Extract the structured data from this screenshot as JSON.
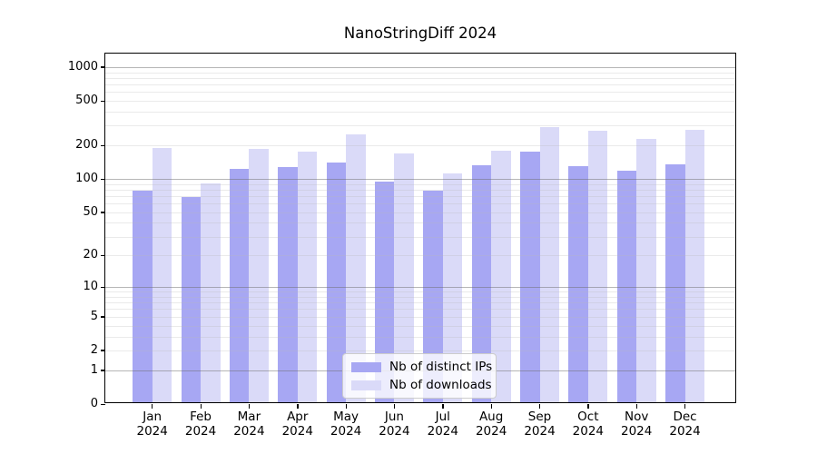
{
  "chart_data": {
    "type": "bar",
    "title": "NanoStringDiff 2024",
    "categories": [
      "Jan",
      "Feb",
      "Mar",
      "Apr",
      "May",
      "Jun",
      "Jul",
      "Aug",
      "Sep",
      "Oct",
      "Nov",
      "Dec"
    ],
    "category_year": "2024",
    "series": [
      {
        "name": "Nb of distinct IPs",
        "color": "#a7a7f3",
        "values": [
          75,
          66,
          119,
          123,
          134,
          92,
          75,
          129,
          170,
          126,
          115,
          131
        ]
      },
      {
        "name": "Nb of downloads",
        "color": "#dadaf8",
        "values": [
          182,
          87,
          178,
          169,
          240,
          162,
          107,
          172,
          280,
          259,
          220,
          264
        ]
      }
    ],
    "y_axis": {
      "scale": "log10(1+y)",
      "ticks": [
        0,
        1,
        2,
        5,
        10,
        20,
        50,
        100,
        200,
        500,
        1000
      ],
      "major_gridlines": [
        1,
        10,
        100,
        1000
      ],
      "minor_gridlines": [
        2,
        3,
        4,
        5,
        6,
        7,
        8,
        9,
        20,
        30,
        40,
        50,
        60,
        70,
        80,
        90,
        200,
        300,
        400,
        500,
        600,
        700,
        800,
        900
      ],
      "ylim": [
        0,
        1320
      ]
    },
    "xlabel": "",
    "ylabel": "",
    "grid": true,
    "legend": {
      "position": "bottom-center"
    }
  }
}
